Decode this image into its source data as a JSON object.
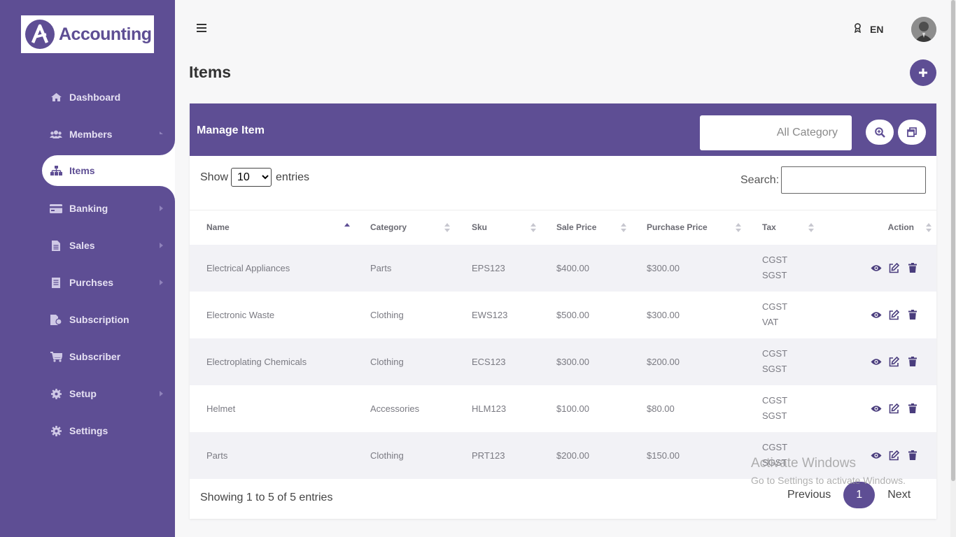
{
  "brand": {
    "name": "Accounting",
    "accent": "#5e4e94"
  },
  "sidebar": {
    "items": [
      {
        "label": "Dashboard",
        "icon": "home-icon",
        "has_submenu": false
      },
      {
        "label": "Members",
        "icon": "users-icon",
        "has_submenu": true
      },
      {
        "label": "Items",
        "icon": "sitemap-icon",
        "has_submenu": false,
        "active": true
      },
      {
        "label": "Banking",
        "icon": "credit-card-icon",
        "has_submenu": true
      },
      {
        "label": "Sales",
        "icon": "file-icon",
        "has_submenu": true
      },
      {
        "label": "Purchses",
        "icon": "receipt-icon",
        "has_submenu": true
      },
      {
        "label": "Subscription",
        "icon": "subscription-icon",
        "has_submenu": false
      },
      {
        "label": "Subscriber",
        "icon": "cart-icon",
        "has_submenu": false
      },
      {
        "label": "Setup",
        "icon": "cog-icon",
        "has_submenu": true
      },
      {
        "label": "Settings",
        "icon": "gear-icon",
        "has_submenu": false
      }
    ]
  },
  "topbar": {
    "language": "EN",
    "menu_icon": "hamburger-icon",
    "lang_icon": "award-icon"
  },
  "page": {
    "title": "Items",
    "add_icon": "plus-icon"
  },
  "card": {
    "title": "Manage Item",
    "category_select": "All Category",
    "show_label": "Show",
    "entries_label": "entries",
    "page_size": "10",
    "page_size_options": [
      "10"
    ],
    "search_label": "Search:"
  },
  "table": {
    "columns": [
      "Name",
      "Category",
      "Sku",
      "Sale Price",
      "Purchase Price",
      "Tax",
      "Action"
    ],
    "rows": [
      {
        "name": "Electrical Appliances",
        "category": "Parts",
        "sku": "EPS123",
        "sale": "$400.00",
        "purchase": "$300.00",
        "tax": [
          "CGST",
          "SGST"
        ]
      },
      {
        "name": "Electronic Waste",
        "category": "Clothing",
        "sku": "EWS123",
        "sale": "$500.00",
        "purchase": "$300.00",
        "tax": [
          "CGST",
          "VAT"
        ]
      },
      {
        "name": "Electroplating Chemicals",
        "category": "Clothing",
        "sku": "ECS123",
        "sale": "$300.00",
        "purchase": "$200.00",
        "tax": [
          "CGST",
          "SGST"
        ]
      },
      {
        "name": "Helmet",
        "category": "Accessories",
        "sku": "HLM123",
        "sale": "$100.00",
        "purchase": "$80.00",
        "tax": [
          "CGST",
          "SGST"
        ]
      },
      {
        "name": "Parts",
        "category": "Clothing",
        "sku": "PRT123",
        "sale": "$200.00",
        "purchase": "$150.00",
        "tax": [
          "CGST",
          "SGST"
        ]
      }
    ]
  },
  "footer": {
    "info": "Showing 1 to 5 of 5 entries",
    "previous": "Previous",
    "current_page": "1",
    "next": "Next"
  },
  "watermark": {
    "line1": "Activate Windows",
    "line2": "Go to Settings to activate Windows."
  }
}
